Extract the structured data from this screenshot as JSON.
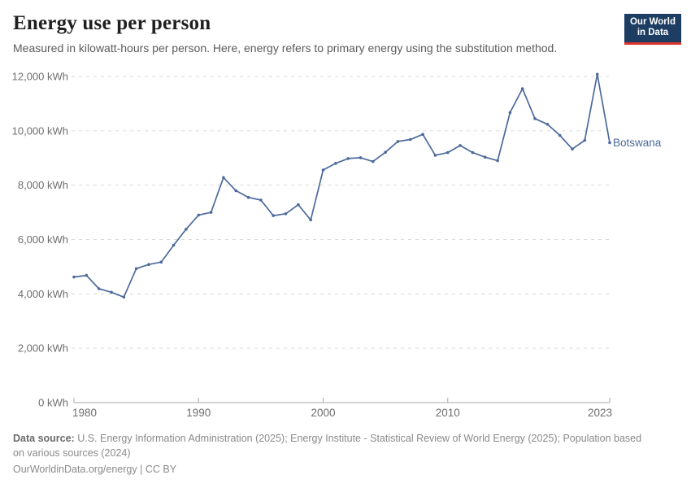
{
  "logo": {
    "line1": "Our World",
    "line2": "in Data",
    "bg_color": "#1d3d63",
    "accent_color": "#dc342c"
  },
  "chart_data": {
    "type": "line",
    "title": "Energy use per person",
    "subtitle": "Measured in kilowatt-hours per person. Here, energy refers to primary energy using the substitution method.",
    "unit": "kWh",
    "x": [
      1980,
      1981,
      1982,
      1983,
      1984,
      1985,
      1986,
      1987,
      1988,
      1989,
      1990,
      1991,
      1992,
      1993,
      1994,
      1995,
      1996,
      1997,
      1998,
      1999,
      2000,
      2001,
      2002,
      2003,
      2004,
      2005,
      2006,
      2007,
      2008,
      2009,
      2010,
      2011,
      2012,
      2013,
      2014,
      2015,
      2016,
      2017,
      2018,
      2019,
      2020,
      2021,
      2022,
      2023
    ],
    "series": [
      {
        "name": "Botswana",
        "color": "#4c6a9c",
        "values": [
          4620,
          4680,
          4190,
          4060,
          3880,
          4930,
          5080,
          5170,
          5790,
          6380,
          6900,
          7000,
          8280,
          7800,
          7550,
          7450,
          6880,
          6950,
          7280,
          6720,
          8560,
          8800,
          8980,
          9010,
          8870,
          9210,
          9610,
          9680,
          9870,
          9100,
          9200,
          9460,
          9200,
          9030,
          8900,
          10670,
          11550,
          10450,
          10240,
          9830,
          9330,
          9650,
          12080,
          9560
        ]
      }
    ],
    "xlim": [
      1980,
      2023
    ],
    "ylim": [
      0,
      12000
    ],
    "xticks": [
      1980,
      1990,
      2000,
      2010,
      2023
    ],
    "yticks": [
      0,
      2000,
      4000,
      6000,
      8000,
      10000,
      12000
    ],
    "ytick_labels": [
      "0 kWh",
      "2,000 kWh",
      "4,000 kWh",
      "6,000 kWh",
      "8,000 kWh",
      "10,000 kWh",
      "12,000 kWh"
    ],
    "grid": "horizontal-dashed",
    "legend_position": "line-end-label",
    "colors": {
      "grid": "#dadada",
      "axis_line": "#a8a8a8",
      "axis_text": "#6e6e6e"
    }
  },
  "footer": {
    "source_label": "Data source:",
    "source_line1": "U.S. Energy Information Administration (2025); Energy Institute - Statistical Review of World Energy (2025); Population based",
    "source_line2": "on various sources (2024)",
    "link": "OurWorldinData.org/energy",
    "separator": " | ",
    "license": "CC BY"
  }
}
